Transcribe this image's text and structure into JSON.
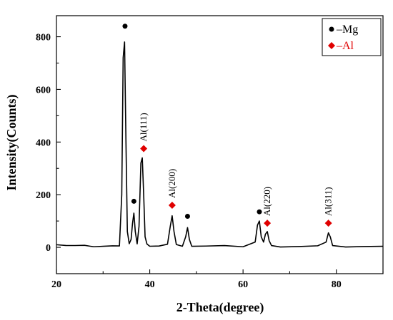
{
  "chart_data": {
    "type": "line",
    "xlabel": "2-Theta(degree)",
    "ylabel": "Intensity(Counts)",
    "xlim": [
      20,
      90
    ],
    "ylim": [
      -100,
      880
    ],
    "x_ticks": [
      20,
      40,
      60,
      80
    ],
    "y_ticks": [
      0,
      200,
      400,
      600,
      800
    ],
    "grid": false,
    "legend": {
      "placement": "top-right",
      "entries": [
        {
          "label": "–Mg",
          "marker": "circle",
          "color": "#000000"
        },
        {
          "label": "–Al",
          "marker": "diamond",
          "color": "#e00000"
        }
      ]
    },
    "series": [
      {
        "x": [
          20,
          22,
          24,
          26,
          28,
          30,
          32,
          33.5,
          34.0,
          34.3,
          34.6,
          34.9,
          35.2,
          35.6,
          36.0,
          36.3,
          36.6,
          36.9,
          37.3,
          37.7,
          38.1,
          38.4,
          38.7,
          39.0,
          39.4,
          40,
          42,
          43.8,
          44.4,
          44.8,
          45.2,
          45.7,
          47.0,
          47.7,
          48.1,
          48.5,
          49.0,
          52,
          56,
          60,
          62.6,
          63.1,
          63.5,
          63.9,
          64.4,
          64.8,
          65.2,
          65.6,
          66.1,
          68,
          72,
          76,
          77.8,
          78.3,
          78.7,
          79.2,
          82,
          86,
          90
        ],
        "y": [
          10,
          8,
          6,
          5,
          4,
          4,
          4,
          8,
          200,
          720,
          780,
          400,
          60,
          12,
          30,
          90,
          130,
          60,
          15,
          80,
          320,
          340,
          200,
          40,
          10,
          6,
          5,
          10,
          80,
          120,
          60,
          8,
          6,
          40,
          75,
          30,
          5,
          4,
          4,
          4,
          20,
          85,
          100,
          40,
          20,
          50,
          60,
          25,
          5,
          4,
          4,
          5,
          20,
          55,
          40,
          5,
          4,
          4,
          4
        ]
      }
    ],
    "annotations": [
      {
        "x": 34.7,
        "y": 840,
        "marker": "circle",
        "phase": "Mg"
      },
      {
        "x": 36.6,
        "y": 175,
        "marker": "circle",
        "phase": "Mg"
      },
      {
        "x": 48.1,
        "y": 118,
        "marker": "circle",
        "phase": "Mg"
      },
      {
        "x": 63.5,
        "y": 135,
        "marker": "circle",
        "phase": "Mg"
      },
      {
        "x": 38.7,
        "y": 375,
        "marker": "diamond",
        "phase": "Al",
        "label": "Al(111)"
      },
      {
        "x": 44.8,
        "y": 160,
        "marker": "diamond",
        "phase": "Al",
        "label": "Al(200)"
      },
      {
        "x": 65.2,
        "y": 92,
        "marker": "diamond",
        "phase": "Al",
        "label": "Al(220)"
      },
      {
        "x": 78.3,
        "y": 92,
        "marker": "diamond",
        "phase": "Al",
        "label": "Al(311)"
      }
    ]
  }
}
